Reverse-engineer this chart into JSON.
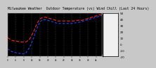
{
  "title": "Milwaukee Weather  Outdoor Temperature (vs) Wind Chill (Last 24 Hours)",
  "bg_color": "#c8c8c8",
  "plot_bg": "#000000",
  "grid_color": "#666666",
  "ylim": [
    -20,
    50
  ],
  "ytick_labels": [
    "50",
    "40",
    "30",
    "20",
    "10",
    "0",
    "-10",
    "-20"
  ],
  "yticks": [
    50,
    40,
    30,
    20,
    10,
    0,
    -10,
    -20
  ],
  "num_points": 48,
  "outdoor_temp": [
    10,
    8,
    6,
    5,
    5,
    4,
    4,
    3,
    3,
    3,
    5,
    8,
    14,
    20,
    28,
    35,
    40,
    42,
    43,
    43,
    42,
    41,
    40,
    39,
    38,
    37,
    37,
    37,
    37,
    37,
    37,
    37,
    37,
    37,
    37,
    38,
    38,
    38,
    39,
    40,
    41,
    42,
    43,
    44,
    45,
    46,
    47,
    48
  ],
  "wind_chill": [
    -8,
    -10,
    -12,
    -13,
    -14,
    -15,
    -15,
    -16,
    -16,
    -15,
    -10,
    -5,
    2,
    10,
    20,
    28,
    35,
    38,
    39,
    39,
    38,
    37,
    36,
    35,
    34,
    33,
    33,
    33,
    33,
    33,
    33,
    33,
    33,
    34,
    34,
    35,
    35,
    36,
    37,
    38,
    39,
    40,
    41,
    42,
    43,
    44,
    45,
    46
  ],
  "black_line": [
    12,
    10,
    8,
    7,
    6,
    5,
    5,
    4,
    4,
    4,
    6,
    10,
    16,
    22,
    30,
    37,
    42,
    44,
    45,
    45,
    44,
    43,
    42,
    41,
    40,
    39,
    38,
    38,
    38,
    38,
    38,
    38,
    38,
    38,
    38,
    39,
    39,
    39,
    40,
    41,
    42,
    43,
    44,
    45,
    46,
    47,
    48,
    49
  ],
  "outdoor_color": "#ff2222",
  "wind_chill_color": "#2244ff",
  "black_color": "#000000",
  "title_color": "#000000",
  "title_fontsize": 3.5,
  "tick_fontsize": 3.0
}
